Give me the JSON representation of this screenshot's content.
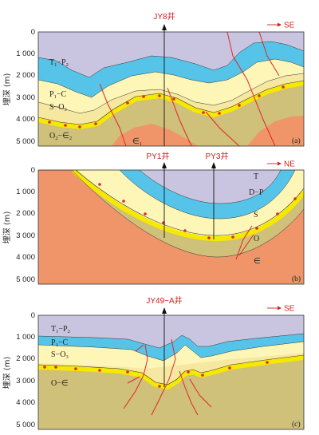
{
  "panels": [
    {
      "id": "a",
      "panel_label": "(a)",
      "ylabel": "埋深 (m)",
      "depth_ticks": [
        "0",
        "1 000",
        "2 000",
        "3 000",
        "4 000",
        "5 000"
      ],
      "wells": [
        "JY8井"
      ],
      "direction": "SE",
      "units": [
        {
          "sym": "T",
          "sub": "1",
          "mid": "−P",
          "sub2": "2"
        },
        {
          "sym": "P",
          "sub": "1",
          "mid": "−C",
          "sub2": ""
        },
        {
          "sym": "S−O",
          "sub": "3",
          "mid": "",
          "sub2": ""
        },
        {
          "sym": "O",
          "sub": "2",
          "mid": "−∈",
          "sub2": "2"
        },
        {
          "sym": "∈",
          "sub": "1",
          "mid": "",
          "sub2": ""
        }
      ]
    },
    {
      "id": "b",
      "panel_label": "(b)",
      "ylabel": "埋深 (m)",
      "depth_ticks": [
        "0",
        "1 000",
        "2 000",
        "3 000",
        "4 000",
        "5 000"
      ],
      "wells": [
        "PY1井",
        "PY3井"
      ],
      "direction": "NE",
      "units": [
        {
          "sym": "T",
          "sub": "",
          "mid": "",
          "sub2": ""
        },
        {
          "sym": "D−P",
          "sub": "",
          "mid": "",
          "sub2": ""
        },
        {
          "sym": "S",
          "sub": "",
          "mid": "",
          "sub2": ""
        },
        {
          "sym": "O",
          "sub": "",
          "mid": "",
          "sub2": ""
        },
        {
          "sym": "∈",
          "sub": "",
          "mid": "",
          "sub2": ""
        }
      ]
    },
    {
      "id": "c",
      "panel_label": "(c)",
      "ylabel": "埋深 (m)",
      "depth_ticks": [
        "0",
        "1 000",
        "2 000",
        "3 000",
        "4 000",
        "5 000"
      ],
      "wells": [
        "JY49−A井"
      ],
      "direction": "SE",
      "units": [
        {
          "sym": "T",
          "sub": "1",
          "mid": "−P",
          "sub2": "2"
        },
        {
          "sym": "P",
          "sub": "1",
          "mid": "−C",
          "sub2": ""
        },
        {
          "sym": "S−O",
          "sub": "3",
          "mid": "",
          "sub2": ""
        },
        {
          "sym": "O−∈",
          "sub": "",
          "mid": "",
          "sub2": ""
        }
      ]
    }
  ],
  "colors": {
    "purple": "#c9c5e0",
    "blue": "#56c4e8",
    "lightyellow": "#fdf6b6",
    "yellow": "#f6e800",
    "khaki": "#cfc07a",
    "orange": "#f0956a",
    "fault": "#e0262c",
    "dot": "#e0262c"
  }
}
